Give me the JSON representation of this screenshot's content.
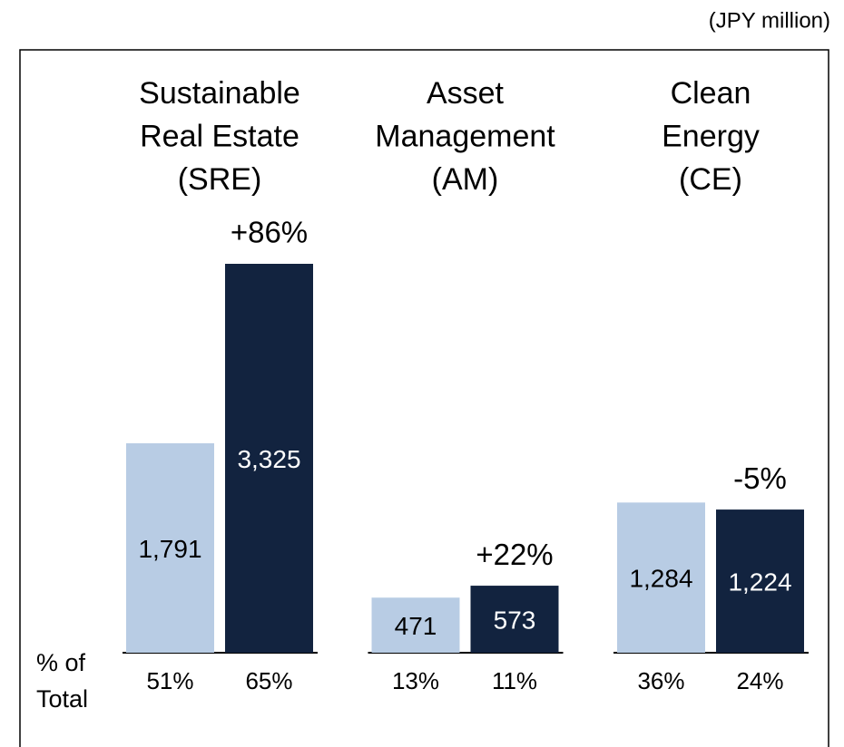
{
  "chart_data": {
    "type": "bar",
    "unit": "(JPY million)",
    "categories": [
      [
        "Sustainable",
        "Real Estate",
        "(SRE)"
      ],
      [
        "Asset",
        "Management",
        "(AM)"
      ],
      [
        "Clean",
        "Energy",
        "(CE)"
      ]
    ],
    "series": [
      {
        "color": "#b8cce4",
        "label_color": "#000000",
        "values": [
          1791,
          471,
          1284
        ],
        "value_labels": [
          "1,791",
          "471",
          "1,284"
        ],
        "shares": [
          51,
          13,
          36
        ],
        "share_labels": [
          "51%",
          "13%",
          "36%"
        ]
      },
      {
        "color": "#12233f",
        "label_color": "#ffffff",
        "values": [
          3325,
          573,
          1224
        ],
        "value_labels": [
          "3,325",
          "573",
          "1,224"
        ],
        "shares": [
          65,
          11,
          24
        ],
        "share_labels": [
          "65%",
          "11%",
          "24%"
        ]
      }
    ],
    "growth": {
      "values": [
        86,
        22,
        -5
      ],
      "value_labels": [
        "+86%",
        "+22%",
        "-5%"
      ]
    },
    "share_title": [
      "% of",
      "Total"
    ]
  }
}
